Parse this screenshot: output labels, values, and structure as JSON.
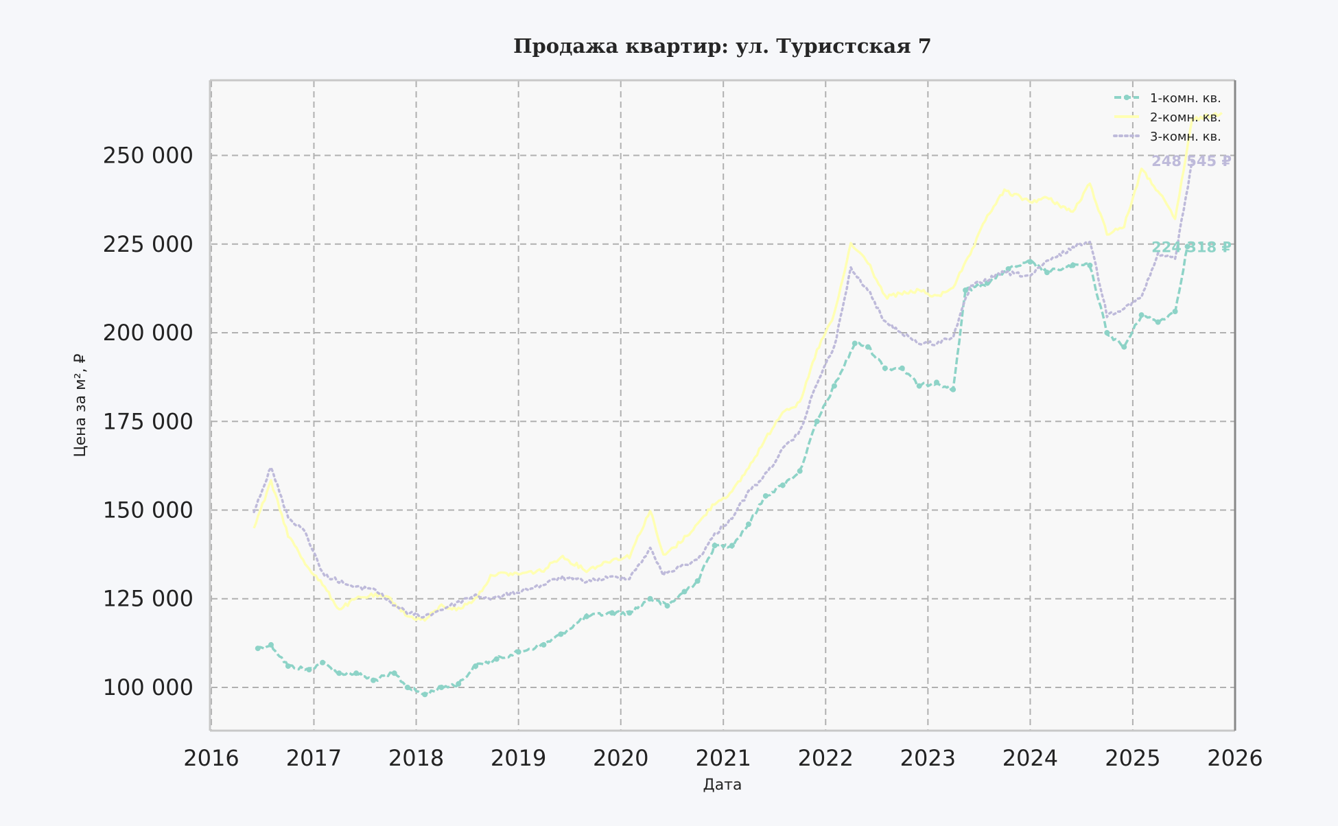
{
  "chart_data": {
    "type": "line",
    "title": "Продажа квартир: ул. Туристская 7",
    "xlabel": "Дата",
    "ylabel": "Цена за м², ₽",
    "xlim": [
      "2016-01-01",
      "2026-01-01"
    ],
    "ylim": [
      88000,
      271000
    ],
    "x_ticks": [
      "2016",
      "2017",
      "2018",
      "2019",
      "2020",
      "2021",
      "2022",
      "2023",
      "2024",
      "2025",
      "2026"
    ],
    "y_ticks": [
      100000,
      125000,
      150000,
      175000,
      200000,
      225000,
      250000
    ],
    "y_tick_labels": [
      "100 000",
      "125 000",
      "150 000",
      "175 000",
      "200 000",
      "225 000",
      "250 000"
    ],
    "grid": true,
    "legend_position": "top-right",
    "series": [
      {
        "name": "1-комн. кв.",
        "color": "#8dd3c7",
        "style": "dashed-markers",
        "end_label": "224 318 ₽",
        "x": [
          "2016-06-15",
          "2016-08-01",
          "2016-10-01",
          "2016-12-15",
          "2017-02-01",
          "2017-04-01",
          "2017-06-01",
          "2017-08-01",
          "2017-10-15",
          "2017-12-01",
          "2018-02-01",
          "2018-04-01",
          "2018-06-01",
          "2018-08-01",
          "2018-10-15",
          "2019-01-01",
          "2019-04-01",
          "2019-06-01",
          "2019-09-01",
          "2019-12-01",
          "2020-02-01",
          "2020-04-15",
          "2020-06-15",
          "2020-08-15",
          "2020-10-01",
          "2020-12-01",
          "2021-02-01",
          "2021-04-01",
          "2021-06-01",
          "2021-08-01",
          "2021-10-01",
          "2021-12-01",
          "2022-02-01",
          "2022-04-15",
          "2022-06-01",
          "2022-08-01",
          "2022-10-01",
          "2022-12-01",
          "2023-02-01",
          "2023-04-01",
          "2023-05-15",
          "2023-08-01",
          "2023-10-15",
          "2024-01-01",
          "2024-03-01",
          "2024-06-01",
          "2024-08-01",
          "2024-10-01",
          "2024-12-01",
          "2025-02-01",
          "2025-04-01",
          "2025-06-01",
          "2025-07-15"
        ],
        "values": [
          111000,
          112000,
          106000,
          105000,
          107000,
          104000,
          104000,
          102000,
          104000,
          100000,
          98000,
          100000,
          101000,
          106000,
          108000,
          110000,
          112000,
          115000,
          120000,
          121000,
          121000,
          125000,
          123000,
          127000,
          130000,
          140000,
          140000,
          146000,
          154000,
          157000,
          161000,
          175000,
          185000,
          197000,
          196000,
          190000,
          190000,
          185000,
          186000,
          184000,
          212000,
          214000,
          218000,
          220000,
          217000,
          219000,
          219000,
          200000,
          196000,
          205000,
          203000,
          206000,
          224318
        ]
      },
      {
        "name": "2-комн. кв.",
        "color": "#ffffb3",
        "style": "solid",
        "end_label": "",
        "x": [
          "2016-06-01",
          "2016-08-01",
          "2016-10-01",
          "2016-12-01",
          "2017-02-01",
          "2017-04-01",
          "2017-06-01",
          "2017-08-01",
          "2017-10-01",
          "2017-12-01",
          "2018-02-01",
          "2018-04-01",
          "2018-06-01",
          "2018-08-01",
          "2018-10-01",
          "2019-01-01",
          "2019-04-01",
          "2019-06-01",
          "2019-09-01",
          "2019-12-01",
          "2020-02-01",
          "2020-04-15",
          "2020-06-01",
          "2020-08-01",
          "2020-10-01",
          "2020-12-01",
          "2021-02-01",
          "2021-04-01",
          "2021-06-01",
          "2021-08-01",
          "2021-10-01",
          "2021-12-01",
          "2022-02-01",
          "2022-04-01",
          "2022-06-01",
          "2022-08-01",
          "2022-10-01",
          "2022-12-01",
          "2023-02-01",
          "2023-04-01",
          "2023-06-01",
          "2023-08-01",
          "2023-10-01",
          "2024-01-01",
          "2024-03-01",
          "2024-06-01",
          "2024-08-01",
          "2024-10-01",
          "2024-12-01",
          "2025-02-01",
          "2025-04-01",
          "2025-06-01",
          "2025-08-01",
          "2025-11-15"
        ],
        "values": [
          145000,
          158000,
          143000,
          135000,
          129000,
          122000,
          125000,
          126000,
          125000,
          120000,
          119000,
          123000,
          122000,
          125000,
          132000,
          132000,
          133000,
          137000,
          133000,
          136000,
          137000,
          150000,
          137000,
          141000,
          146000,
          152000,
          155000,
          162000,
          170000,
          178000,
          180000,
          195000,
          205000,
          225000,
          220000,
          210000,
          211000,
          212000,
          210000,
          213000,
          222000,
          233000,
          240000,
          237000,
          238000,
          234000,
          242000,
          228000,
          230000,
          246000,
          240000,
          232000,
          260000,
          262000
        ]
      },
      {
        "name": "3-комн. кв.",
        "color": "#bebada",
        "style": "dotted",
        "end_label": "248 545 ₽",
        "x": [
          "2016-06-01",
          "2016-08-01",
          "2016-10-01",
          "2016-12-01",
          "2017-02-01",
          "2017-04-01",
          "2017-06-01",
          "2017-08-01",
          "2017-10-01",
          "2017-12-01",
          "2018-02-01",
          "2018-04-01",
          "2018-06-01",
          "2018-08-01",
          "2018-10-01",
          "2019-01-01",
          "2019-04-01",
          "2019-06-01",
          "2019-09-01",
          "2019-12-01",
          "2020-02-01",
          "2020-04-15",
          "2020-06-01",
          "2020-08-01",
          "2020-10-01",
          "2020-12-01",
          "2021-02-01",
          "2021-04-01",
          "2021-06-01",
          "2021-08-01",
          "2021-10-01",
          "2021-12-01",
          "2022-02-01",
          "2022-04-01",
          "2022-06-01",
          "2022-08-01",
          "2022-10-01",
          "2022-12-01",
          "2023-02-01",
          "2023-04-01",
          "2023-06-01",
          "2023-08-01",
          "2023-10-01",
          "2024-01-01",
          "2024-03-01",
          "2024-06-01",
          "2024-08-01",
          "2024-10-01",
          "2024-12-01",
          "2025-02-01",
          "2025-04-01",
          "2025-06-01",
          "2025-08-01"
        ],
        "values": [
          150000,
          162000,
          148000,
          144000,
          132000,
          130000,
          128000,
          128000,
          124000,
          121000,
          120000,
          122000,
          124000,
          126000,
          125000,
          127000,
          129000,
          131000,
          130000,
          131000,
          131000,
          139000,
          132000,
          134000,
          136000,
          143000,
          148000,
          155000,
          160000,
          167000,
          172000,
          186000,
          196000,
          218000,
          212000,
          203000,
          200000,
          197000,
          197000,
          199000,
          213000,
          215000,
          217000,
          216000,
          220000,
          224000,
          226000,
          205000,
          207000,
          210000,
          222000,
          221000,
          248545
        ]
      }
    ]
  }
}
